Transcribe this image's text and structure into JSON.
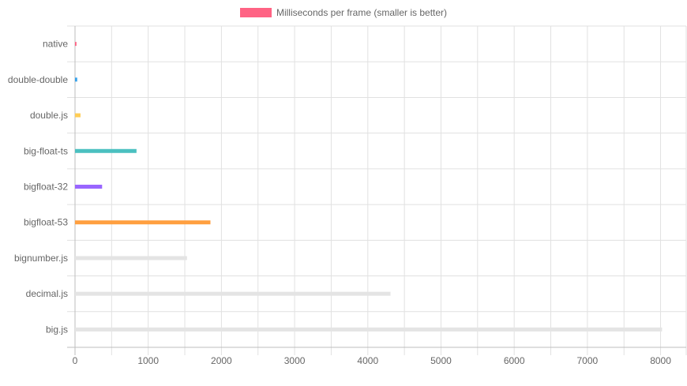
{
  "chart_data": {
    "type": "bar",
    "orientation": "horizontal",
    "legend": [
      {
        "label": "Milliseconds per frame (smaller is better)",
        "color": "#ff6384"
      }
    ],
    "legend_position": "top",
    "categories": [
      "native",
      "double-double",
      "double.js",
      "big-float-ts",
      "bigfloat-32",
      "bigfloat-53",
      "bignumber.js",
      "decimal.js",
      "big.js"
    ],
    "values": [
      20,
      30,
      75,
      840,
      370,
      1850,
      1530,
      4310,
      8020
    ],
    "colors": [
      "#ff6384",
      "#36a2eb",
      "#ffcd56",
      "#4bc0c0",
      "#9966ff",
      "#ff9f40",
      "#e4e4e4",
      "#e4e4e4",
      "#e4e4e4"
    ],
    "xlim": [
      0,
      8350
    ],
    "xticks": [
      0,
      1000,
      2000,
      3000,
      4000,
      5000,
      6000,
      7000,
      8000
    ],
    "grid": true
  }
}
